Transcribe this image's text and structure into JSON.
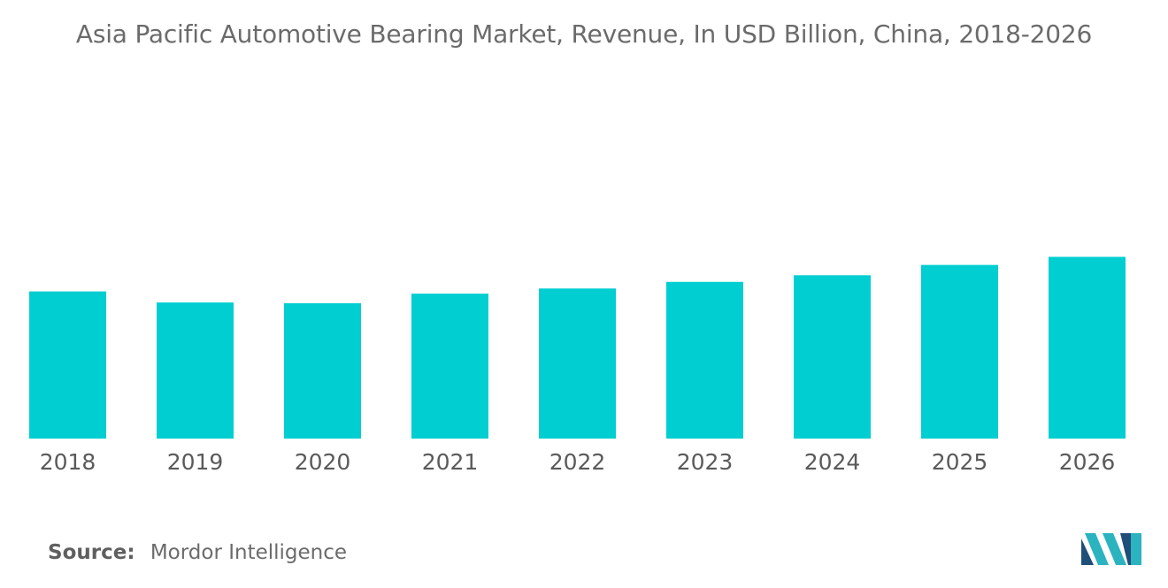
{
  "chart_data": {
    "type": "bar",
    "title": "Asia Pacific Automotive Bearing Market, Revenue, In USD Billion, China, 2018-2026",
    "categories": [
      "2018",
      "2019",
      "2020",
      "2021",
      "2022",
      "2023",
      "2024",
      "2025",
      "2026"
    ],
    "values": [
      2.0,
      1.85,
      1.84,
      1.97,
      2.04,
      2.13,
      2.22,
      2.36,
      2.47
    ],
    "xlabel": "",
    "ylabel": "",
    "ylim": [
      0,
      5.0
    ],
    "grid": false,
    "legend": "none",
    "bar_color": "#00CED1"
  },
  "source": {
    "label": "Source:",
    "text": "Mordor Intelligence"
  },
  "logo": {
    "icon": "mordor-intelligence-logo",
    "colors": [
      "#1f4e79",
      "#2bb3c0"
    ]
  }
}
